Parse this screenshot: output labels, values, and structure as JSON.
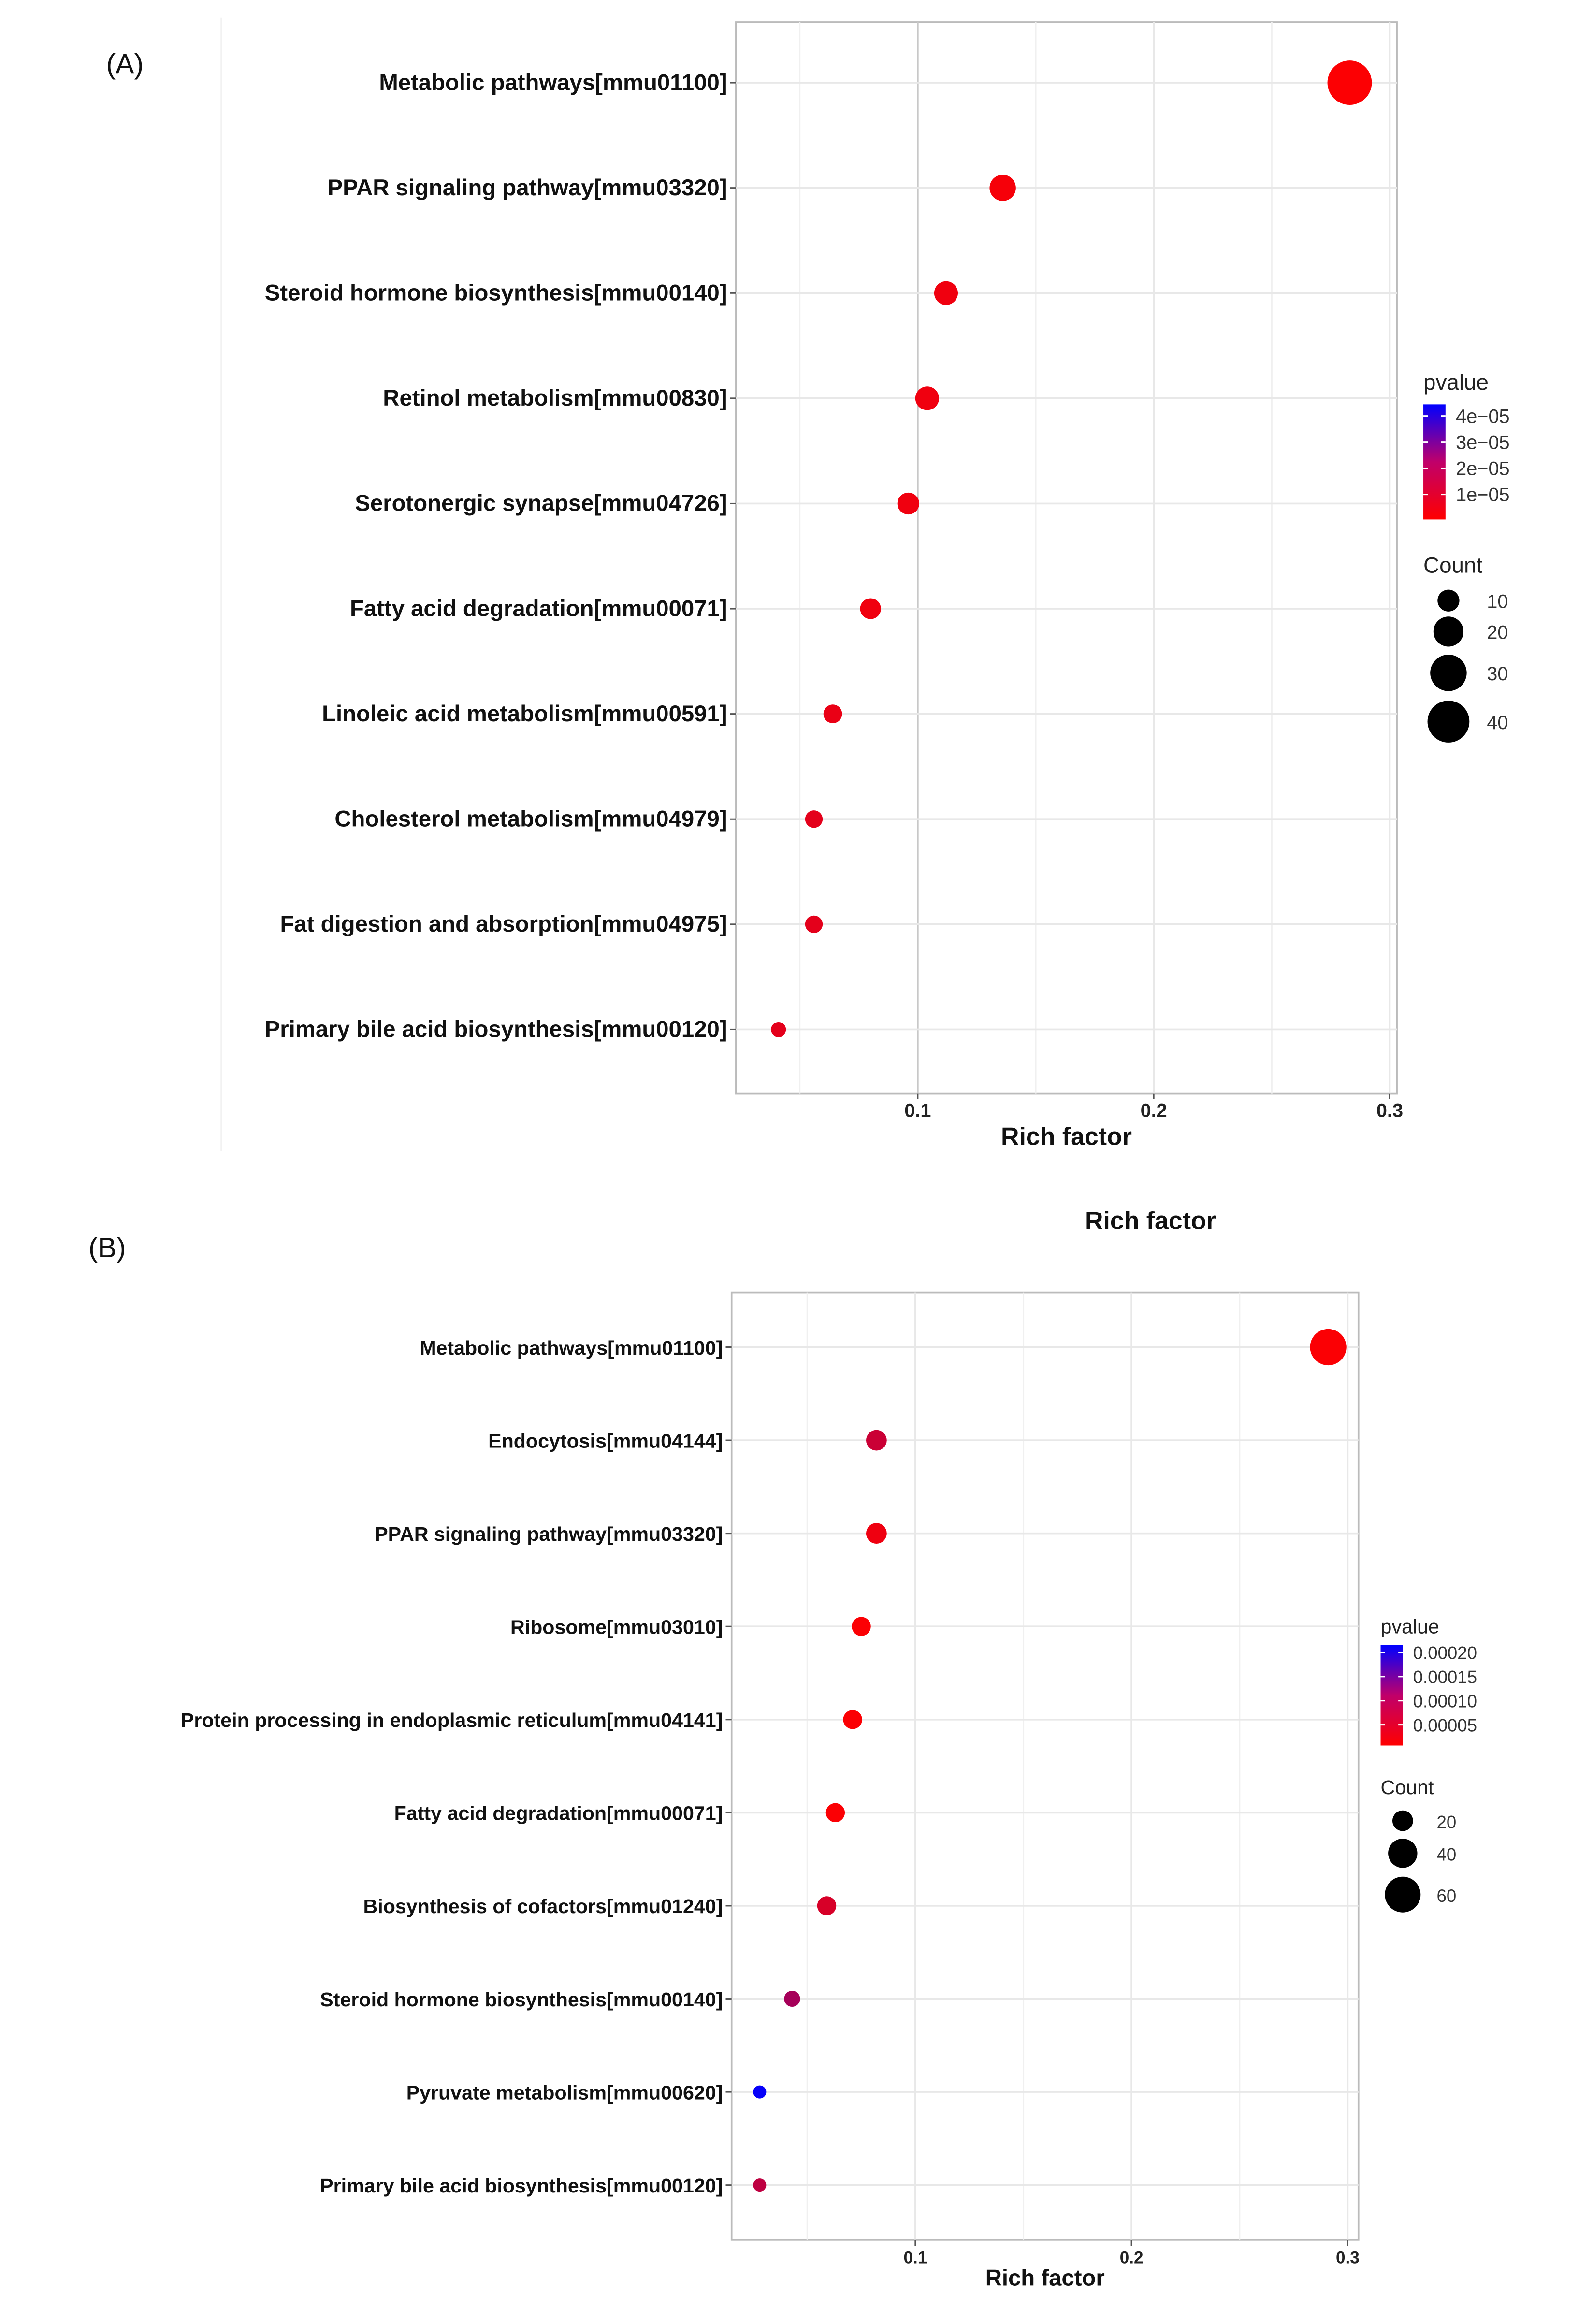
{
  "stray_label": "Rich factor",
  "chart_data": [
    {
      "type": "scatter",
      "panel_label": "(A)",
      "xlabel": "Rich factor",
      "ylabel": "",
      "xlim": [
        0.023,
        0.303
      ],
      "xticks": [
        0.1,
        0.2,
        0.3
      ],
      "xtick_labels": [
        "0.1",
        "0.2",
        "0.3"
      ],
      "grid": true,
      "color_legend": {
        "title": "pvalue",
        "range": [
          4e-07,
          4.45e-05
        ],
        "ticks": [
          4e-05,
          3e-05,
          2e-05,
          1e-05
        ],
        "tick_labels": [
          "4e−05",
          "3e−05",
          "2e−05",
          "1e−05"
        ],
        "low_color": "#ff0000",
        "high_color": "#0000ff"
      },
      "size_legend": {
        "title": "Count",
        "values": [
          10,
          20,
          30,
          40
        ],
        "labels": [
          "10",
          "20",
          "30",
          "40"
        ]
      },
      "legend_position": "right",
      "points": [
        {
          "term": "Metabolic pathways[mmu01100]",
          "rich_factor": 0.283,
          "count": 45,
          "pvalue": 1e-06
        },
        {
          "term": "PPAR signaling pathway[mmu03320]",
          "rich_factor": 0.136,
          "count": 15,
          "pvalue": 2e-06
        },
        {
          "term": "Steroid hormone biosynthesis[mmu00140]",
          "rich_factor": 0.112,
          "count": 12,
          "pvalue": 3e-06
        },
        {
          "term": "Retinol metabolism[mmu00830]",
          "rich_factor": 0.104,
          "count": 12,
          "pvalue": 3e-06
        },
        {
          "term": "Serotonergic synapse[mmu04726]",
          "rich_factor": 0.096,
          "count": 10,
          "pvalue": 3e-06
        },
        {
          "term": "Fatty acid degradation[mmu00071]",
          "rich_factor": 0.08,
          "count": 9,
          "pvalue": 3e-06
        },
        {
          "term": "Linoleic acid metabolism[mmu00591]",
          "rich_factor": 0.064,
          "count": 7,
          "pvalue": 4e-06
        },
        {
          "term": "Cholesterol metabolism[mmu04979]",
          "rich_factor": 0.056,
          "count": 6,
          "pvalue": 5e-06
        },
        {
          "term": "Fat digestion and absorption[mmu04975]",
          "rich_factor": 0.056,
          "count": 6,
          "pvalue": 5e-06
        },
        {
          "term": "Primary bile acid biosynthesis[mmu00120]",
          "rich_factor": 0.041,
          "count": 4,
          "pvalue": 5e-06
        }
      ]
    },
    {
      "type": "scatter",
      "panel_label": "(B)",
      "xlabel": "Rich factor",
      "ylabel": "",
      "xlim": [
        0.015,
        0.305
      ],
      "xticks": [
        0.1,
        0.2,
        0.3
      ],
      "xtick_labels": [
        "0.1",
        "0.2",
        "0.3"
      ],
      "grid": true,
      "color_legend": {
        "title": "pvalue",
        "range": [
          7e-06,
          0.000215
        ],
        "ticks": [
          0.0002,
          0.00015,
          0.0001,
          5e-05
        ],
        "tick_labels": [
          "0.00020",
          "0.00015",
          "0.00010",
          "0.00005"
        ],
        "low_color": "#ff0000",
        "high_color": "#0000ff"
      },
      "size_legend": {
        "title": "Count",
        "values": [
          20,
          40,
          60
        ],
        "labels": [
          "20",
          "40",
          "60"
        ]
      },
      "legend_position": "right",
      "points": [
        {
          "term": "Metabolic pathways[mmu01100]",
          "rich_factor": 0.291,
          "count": 62,
          "pvalue": 1e-05
        },
        {
          "term": "Endocytosis[mmu04144]",
          "rich_factor": 0.082,
          "count": 20,
          "pvalue": 5e-05
        },
        {
          "term": "PPAR signaling pathway[mmu03320]",
          "rich_factor": 0.082,
          "count": 20,
          "pvalue": 2e-05
        },
        {
          "term": "Ribosome[mmu03010]",
          "rich_factor": 0.075,
          "count": 17,
          "pvalue": 1e-05
        },
        {
          "term": "Protein processing in endoplasmic reticulum[mmu04141]",
          "rich_factor": 0.071,
          "count": 17,
          "pvalue": 1e-05
        },
        {
          "term": "Fatty acid degradation[mmu00071]",
          "rich_factor": 0.063,
          "count": 17,
          "pvalue": 1e-05
        },
        {
          "term": "Biosynthesis of cofactors[mmu01240]",
          "rich_factor": 0.059,
          "count": 17,
          "pvalue": 4e-05
        },
        {
          "term": "Steroid hormone biosynthesis[mmu00140]",
          "rich_factor": 0.043,
          "count": 12,
          "pvalue": 8e-05
        },
        {
          "term": "Pyruvate metabolism[mmu00620]",
          "rich_factor": 0.028,
          "count": 8,
          "pvalue": 0.00021
        },
        {
          "term": "Primary bile acid biosynthesis[mmu00120]",
          "rich_factor": 0.028,
          "count": 8,
          "pvalue": 6e-05
        }
      ]
    }
  ]
}
